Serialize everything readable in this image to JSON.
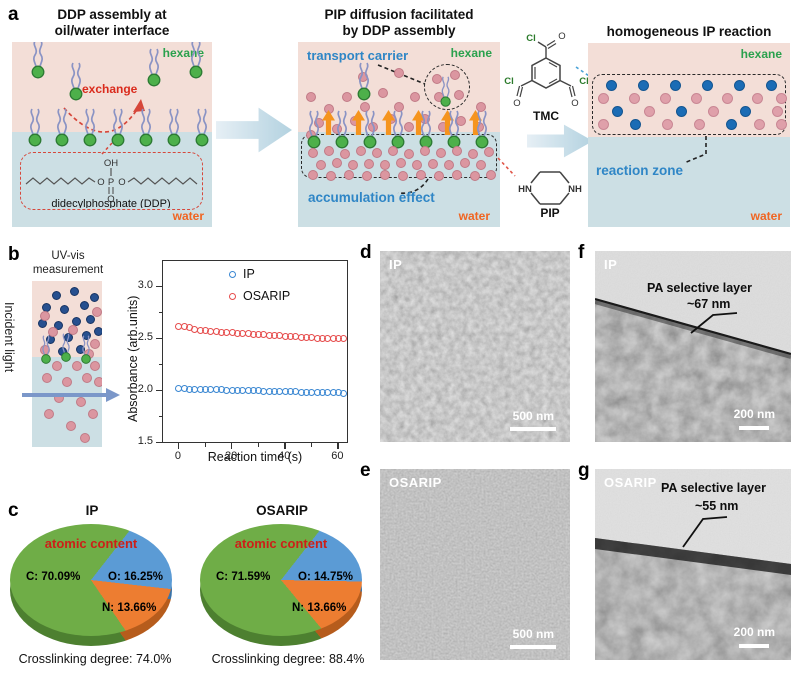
{
  "labels": {
    "a": "a",
    "b": "b",
    "c": "c",
    "d": "d",
    "e": "e",
    "f": "f",
    "g": "g"
  },
  "panel_a": {
    "left": {
      "title1": "DDP assembly at",
      "title2": "oil/water interface",
      "hexane": "hexane",
      "water": "water",
      "exchange": "exchange",
      "oh": "OH",
      "o": "O",
      "p": "P",
      "ddp": "didecylphosphate (DDP)"
    },
    "middle": {
      "title1": "PIP diffusion facilitated",
      "title2": "by DDP assembly",
      "transport": "transport carrier",
      "accumulation": "accumulation effect",
      "hexane": "hexane",
      "water": "water"
    },
    "right": {
      "title": "homogeneous IP reaction",
      "zone": "reaction zone",
      "hexane": "hexane",
      "water": "water"
    },
    "chem": {
      "tmc": "TMC",
      "pip": "PIP",
      "cl": "Cl",
      "o": "O",
      "hn": "HN",
      "nh": "NH"
    }
  },
  "panel_b": {
    "uv1": "UV-vis",
    "uv2": "measurement",
    "incident": "Incident light"
  },
  "micrographs": {
    "d": {
      "tag": "IP",
      "scale": "500 nm"
    },
    "e": {
      "tag": "OSARIP",
      "scale": "500 nm"
    },
    "f": {
      "tag": "IP",
      "ann1": "PA selective layer",
      "ann2": "~67 nm",
      "scale": "200 nm"
    },
    "g": {
      "tag": "OSARIP",
      "ann1": "PA selective layer",
      "ann2": "~55 nm",
      "scale": "200 nm"
    }
  },
  "chart_data": [
    {
      "type": "scatter",
      "xlabel": "Reaction time (s)",
      "ylabel": "Absorbance (arb.units)",
      "xlim": [
        -6,
        64
      ],
      "ylim": [
        1.49,
        3.25
      ],
      "xticks": [
        0,
        20,
        40,
        60
      ],
      "xticks_minor": [
        10,
        30,
        50
      ],
      "yticks": [
        1.5,
        2.0,
        2.5,
        3.0
      ],
      "yticks_minor": [
        1.75,
        2.25,
        2.75
      ],
      "grid": false,
      "legend_position": "inside top-center",
      "series": [
        {
          "name": "IP",
          "color": "#3a87d2",
          "x": [
            0,
            2,
            4,
            6,
            8,
            10,
            12,
            14,
            16,
            18,
            20,
            22,
            24,
            26,
            28,
            30,
            32,
            34,
            36,
            38,
            40,
            42,
            44,
            46,
            48,
            50,
            52,
            54,
            56,
            58,
            60,
            62
          ],
          "y": [
            2.02,
            2.019,
            2.017,
            2.016,
            2.015,
            2.013,
            2.012,
            2.011,
            2.01,
            2.008,
            2.007,
            2.006,
            2.005,
            2.003,
            2.002,
            2.001,
            1.999,
            1.998,
            1.997,
            1.995,
            1.994,
            1.993,
            1.992,
            1.99,
            1.989,
            1.988,
            1.986,
            1.985,
            1.984,
            1.983,
            1.981,
            1.98
          ]
        },
        {
          "name": "OSARIP",
          "color": "#e64c4c",
          "x": [
            0,
            2,
            4,
            6,
            8,
            10,
            12,
            14,
            16,
            18,
            20,
            22,
            24,
            26,
            28,
            30,
            32,
            34,
            36,
            38,
            40,
            42,
            44,
            46,
            48,
            50,
            52,
            54,
            56,
            58,
            60,
            62
          ],
          "y": [
            2.62,
            2.62,
            2.61,
            2.59,
            2.585,
            2.58,
            2.575,
            2.57,
            2.567,
            2.563,
            2.56,
            2.557,
            2.553,
            2.55,
            2.547,
            2.543,
            2.54,
            2.537,
            2.533,
            2.53,
            2.527,
            2.523,
            2.52,
            2.517,
            2.513,
            2.51,
            2.507,
            2.505,
            2.503,
            2.501,
            2.5,
            2.5
          ]
        }
      ]
    },
    {
      "type": "pie",
      "title": "IP",
      "annotation": "atomic content",
      "labels": [
        "C: 70.09%",
        "O: 16.25%",
        "N: 13.66%"
      ],
      "values": [
        70.09,
        16.25,
        13.66
      ],
      "colors": [
        "#6fad47",
        "#5b9bd5",
        "#ed7d31"
      ],
      "side_colors": [
        "#4d8030",
        "#3a73a8",
        "#b65c1c"
      ],
      "caption": "Crosslinking degree: 74.0%"
    },
    {
      "type": "pie",
      "title": "OSARIP",
      "annotation": "atomic content",
      "labels": [
        "C: 71.59%",
        "O: 14.75%",
        "N: 13.66%"
      ],
      "values": [
        71.59,
        14.75,
        13.66
      ],
      "colors": [
        "#6fad47",
        "#5b9bd5",
        "#ed7d31"
      ],
      "side_colors": [
        "#4d8030",
        "#3a73a8",
        "#b65c1c"
      ],
      "caption": "Crosslinking degree: 88.4%"
    }
  ]
}
